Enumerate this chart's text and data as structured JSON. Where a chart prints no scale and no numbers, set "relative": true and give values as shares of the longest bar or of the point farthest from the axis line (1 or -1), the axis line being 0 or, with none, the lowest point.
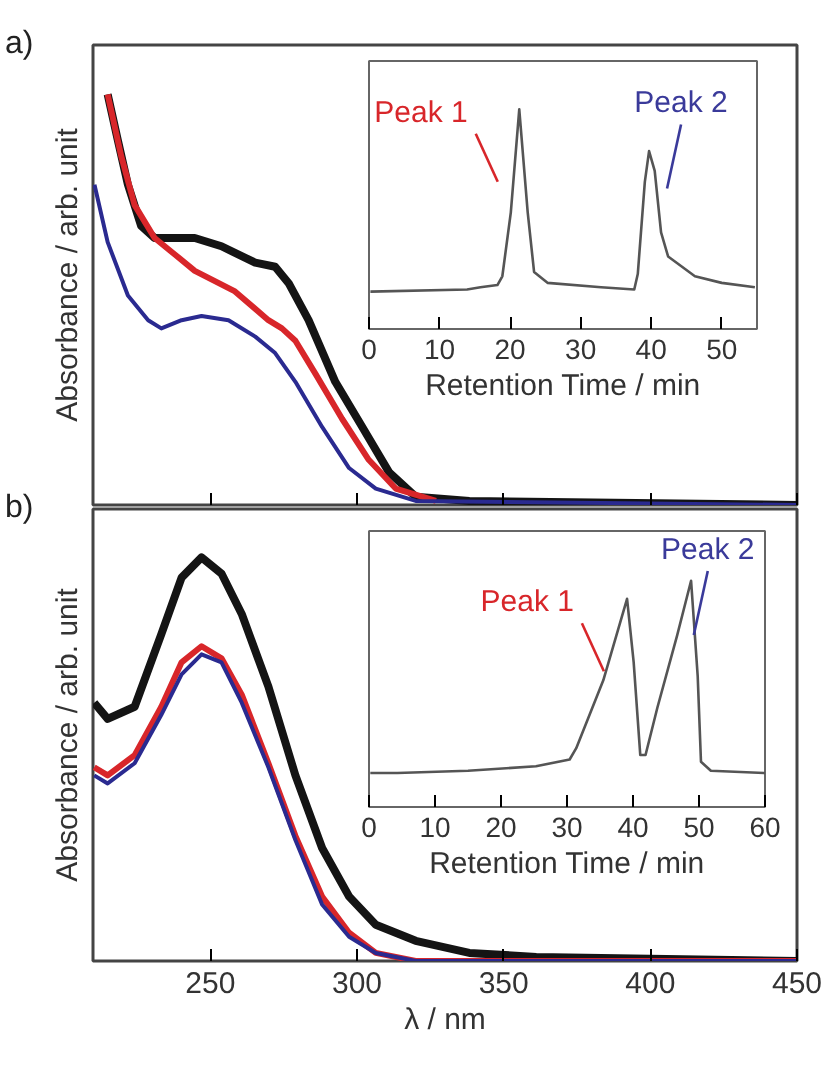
{
  "chart_data": [
    {
      "type": "line",
      "title": "a)",
      "ylabel": "Absorbance / arb. unit",
      "relative": true,
      "xlim": [
        210,
        450
      ],
      "xticks": [
        250,
        300,
        350,
        400,
        450
      ],
      "tick_labels": false,
      "series": [
        {
          "color": "#141414",
          "x": [
            215.0,
            218.4,
            221.9,
            226.4,
            231.0,
            244.7,
            253.8,
            265.3,
            272.1,
            276.7,
            283.5,
            292.6,
            301.8,
            310.9,
            320.0,
            338.3,
            450
          ],
          "values": [
            1.0,
            0.89,
            0.78,
            0.68,
            0.65,
            0.65,
            0.63,
            0.59,
            0.58,
            0.54,
            0.45,
            0.3,
            0.19,
            0.08,
            0.02,
            0.01,
            0.0
          ]
        },
        {
          "color": "#d8262a",
          "x": [
            215.0,
            219.6,
            224.2,
            231.0,
            237.9,
            244.7,
            258.4,
            269.8,
            274.4,
            279.0,
            285.8,
            294.9,
            304.0,
            313.2,
            326.9
          ],
          "values": [
            1.0,
            0.85,
            0.73,
            0.65,
            0.61,
            0.57,
            0.52,
            0.45,
            0.43,
            0.4,
            0.32,
            0.21,
            0.11,
            0.04,
            0.01
          ]
        },
        {
          "color": "#2a2a90",
          "x": [
            210.5,
            215.0,
            221.9,
            228.8,
            233.3,
            240.2,
            247.0,
            256.2,
            265.3,
            272.1,
            279.0,
            288.1,
            297.3,
            306.4,
            320.0,
            450
          ],
          "values": [
            0.78,
            0.64,
            0.51,
            0.45,
            0.43,
            0.45,
            0.46,
            0.45,
            0.41,
            0.37,
            0.3,
            0.19,
            0.09,
            0.04,
            0.01,
            0.0
          ]
        }
      ]
    },
    {
      "type": "line",
      "xlabel": "Retention Time / min",
      "relative": true,
      "xlim": [
        0,
        55
      ],
      "xticks": [
        0,
        10,
        20,
        30,
        40,
        50
      ],
      "tick_labels": "x",
      "annotations": [
        {
          "text": "Peak 1",
          "x": 19.1,
          "y": 0.67
        },
        {
          "text": "Peak 2",
          "x": 41.4,
          "y": 0.64
        }
      ],
      "series": [
        {
          "color": "#555555",
          "x": [
            0.2,
            13.9,
            15.8,
            18.2,
            18.9,
            20.1,
            21.3,
            22.5,
            23.4,
            25.3,
            32.9,
            37.6,
            38.1,
            39.1,
            39.7,
            40.5,
            41.4,
            42.4,
            46.2,
            50.0,
            54.7
          ],
          "values": [
            0.17,
            0.18,
            0.19,
            0.2,
            0.24,
            0.53,
            1.0,
            0.53,
            0.26,
            0.21,
            0.19,
            0.18,
            0.25,
            0.67,
            0.81,
            0.72,
            0.44,
            0.33,
            0.24,
            0.21,
            0.19
          ]
        }
      ]
    },
    {
      "type": "line",
      "title": "b)",
      "xlabel": "λ / nm",
      "ylabel": "Absorbance / arb. unit",
      "relative": true,
      "xlim": [
        210,
        450
      ],
      "xticks": [
        250,
        300,
        350,
        400,
        450
      ],
      "tick_labels": "x",
      "series": [
        {
          "color": "#141414",
          "x": [
            210.4,
            215.0,
            224.2,
            233.3,
            240.2,
            247.0,
            253.8,
            260.7,
            269.8,
            279.0,
            288.1,
            297.3,
            306.4,
            320.0,
            338.3,
            361.1,
            450
          ],
          "values": [
            0.64,
            0.6,
            0.63,
            0.81,
            0.95,
            1.0,
            0.96,
            0.86,
            0.68,
            0.46,
            0.28,
            0.16,
            0.09,
            0.05,
            0.02,
            0.01,
            0.0
          ]
        },
        {
          "color": "#d8262a",
          "x": [
            210.4,
            215.0,
            224.2,
            233.3,
            240.2,
            247.0,
            253.8,
            260.7,
            269.8,
            279.0,
            288.1,
            297.3,
            306.4,
            320.0,
            450
          ],
          "values": [
            0.48,
            0.46,
            0.51,
            0.63,
            0.74,
            0.78,
            0.75,
            0.66,
            0.49,
            0.31,
            0.16,
            0.07,
            0.02,
            0.0,
            0.0
          ]
        },
        {
          "color": "#2a2a90",
          "x": [
            210.4,
            215.0,
            224.2,
            233.3,
            240.2,
            247.0,
            253.8,
            260.7,
            269.8,
            279.0,
            288.1,
            297.3,
            306.4,
            320.0,
            450
          ],
          "values": [
            0.46,
            0.44,
            0.49,
            0.61,
            0.71,
            0.76,
            0.74,
            0.64,
            0.48,
            0.3,
            0.14,
            0.06,
            0.02,
            0.0,
            0.0
          ]
        }
      ]
    },
    {
      "type": "line",
      "xlabel": "Retention Time / min",
      "relative": true,
      "xlim": [
        0,
        60
      ],
      "xticks": [
        0,
        10,
        20,
        30,
        40,
        50,
        60
      ],
      "tick_labels": "x",
      "annotations": [
        {
          "text": "Peak 1",
          "x": 36.5,
          "y": 0.6
        },
        {
          "text": "Peak 2",
          "x": 48.3,
          "y": 0.76
        }
      ],
      "series": [
        {
          "color": "#555555",
          "x": [
            0.2,
            4.3,
            15.0,
            25.3,
            30.4,
            31.4,
            35.5,
            39.1,
            40.1,
            41.1,
            41.9,
            43.7,
            46.7,
            48.8,
            49.8,
            50.3,
            51.8,
            60
          ],
          "values": [
            0.15,
            0.15,
            0.16,
            0.18,
            0.21,
            0.26,
            0.56,
            0.92,
            0.64,
            0.23,
            0.23,
            0.44,
            0.76,
            1.0,
            0.58,
            0.2,
            0.16,
            0.15
          ]
        }
      ]
    }
  ]
}
